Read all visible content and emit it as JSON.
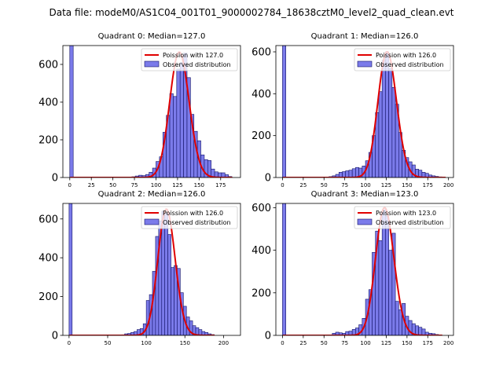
{
  "figure_title": "Data file: modeM0/AS1C04_001T01_9000002784_18638cztM0_level2_quad_clean.evt",
  "colors": {
    "bar_fill": "#7b7bea",
    "bar_edge": "#111166",
    "fit_line": "#e00000"
  },
  "chart_data": [
    {
      "type": "bar",
      "title": "Quadrant 0: Median=127.0",
      "legend": [
        "Poission with 127.0",
        "Observed distribution"
      ],
      "legend_position": "top-right",
      "xlim": [
        -8,
        198
      ],
      "ylim": [
        0,
        700
      ],
      "xticks": [
        0,
        25,
        50,
        75,
        100,
        125,
        150,
        175
      ],
      "yticks": [
        0,
        200,
        400,
        600
      ],
      "bin_width": 4,
      "bin_starts": [
        0,
        72,
        76,
        80,
        84,
        88,
        92,
        96,
        100,
        104,
        108,
        112,
        116,
        120,
        124,
        128,
        132,
        136,
        140,
        144,
        148,
        152,
        156,
        160,
        164,
        168,
        172,
        176,
        180,
        184
      ],
      "counts": [
        700,
        4,
        8,
        12,
        10,
        16,
        28,
        50,
        85,
        110,
        240,
        330,
        445,
        430,
        575,
        610,
        660,
        530,
        335,
        245,
        195,
        120,
        95,
        90,
        45,
        30,
        25,
        25,
        15,
        5
      ],
      "fit_mu": 127,
      "fit_peak": 665,
      "fit_range": [
        0,
        188
      ]
    },
    {
      "type": "bar",
      "title": "Quadrant 1: Median=126.0",
      "legend": [
        "Poission with 126.0",
        "Observed distribution"
      ],
      "legend_position": "top-right",
      "xlim": [
        -8,
        206
      ],
      "ylim": [
        0,
        630
      ],
      "xticks": [
        0,
        25,
        50,
        75,
        100,
        125,
        150,
        175,
        200
      ],
      "yticks": [
        0,
        200,
        400,
        600
      ],
      "bin_width": 4,
      "bin_starts": [
        0,
        56,
        60,
        64,
        68,
        72,
        76,
        80,
        84,
        88,
        92,
        96,
        100,
        104,
        108,
        112,
        116,
        120,
        124,
        128,
        132,
        136,
        140,
        144,
        148,
        152,
        156,
        160,
        164,
        168,
        172,
        176,
        180,
        184,
        188
      ],
      "counts": [
        630,
        4,
        8,
        15,
        25,
        28,
        32,
        35,
        42,
        48,
        45,
        55,
        80,
        120,
        200,
        310,
        410,
        560,
        600,
        520,
        430,
        350,
        215,
        130,
        95,
        75,
        60,
        40,
        35,
        25,
        20,
        12,
        8,
        5,
        3
      ],
      "fit_mu": 126,
      "fit_peak": 600,
      "fit_range": [
        0,
        196
      ]
    },
    {
      "type": "bar",
      "title": "Quadrant 2: Median=126.0",
      "legend": [
        "Poission with 126.0",
        "Observed distribution"
      ],
      "legend_position": "top-right",
      "xlim": [
        -8,
        222
      ],
      "ylim": [
        0,
        680
      ],
      "xticks": [
        0,
        50,
        100,
        150,
        200
      ],
      "yticks": [
        0,
        200,
        400,
        600
      ],
      "bin_width": 4,
      "bin_starts": [
        0,
        68,
        72,
        76,
        80,
        84,
        88,
        92,
        96,
        100,
        104,
        108,
        112,
        116,
        120,
        124,
        128,
        132,
        136,
        140,
        144,
        148,
        152,
        156,
        160,
        164,
        168,
        172,
        176,
        180,
        184
      ],
      "counts": [
        680,
        3,
        8,
        10,
        15,
        20,
        30,
        35,
        60,
        180,
        210,
        330,
        510,
        590,
        640,
        630,
        520,
        350,
        360,
        345,
        220,
        150,
        95,
        75,
        50,
        40,
        30,
        20,
        15,
        8,
        4
      ],
      "fit_mu": 126,
      "fit_peak": 650,
      "fit_range": [
        0,
        188
      ]
    },
    {
      "type": "bar",
      "title": "Quadrant 3: Median=123.0",
      "legend": [
        "Poission with 123.0",
        "Observed distribution"
      ],
      "legend_position": "top-right",
      "xlim": [
        -8,
        206
      ],
      "ylim": [
        0,
        620
      ],
      "xticks": [
        0,
        25,
        50,
        75,
        100,
        125,
        150,
        175,
        200
      ],
      "yticks": [
        0,
        200,
        400,
        600
      ],
      "bin_width": 4,
      "bin_starts": [
        0,
        60,
        64,
        68,
        72,
        76,
        80,
        84,
        88,
        92,
        96,
        100,
        104,
        108,
        112,
        116,
        120,
        124,
        128,
        132,
        136,
        140,
        144,
        148,
        152,
        156,
        160,
        164,
        168,
        172,
        176,
        180,
        184,
        188
      ],
      "counts": [
        620,
        10,
        15,
        12,
        10,
        18,
        20,
        28,
        35,
        50,
        80,
        170,
        215,
        390,
        490,
        445,
        590,
        560,
        400,
        480,
        160,
        120,
        150,
        90,
        70,
        55,
        45,
        38,
        30,
        15,
        10,
        8,
        4,
        2
      ],
      "fit_mu": 123,
      "fit_peak": 600,
      "fit_range": [
        0,
        192
      ]
    }
  ]
}
